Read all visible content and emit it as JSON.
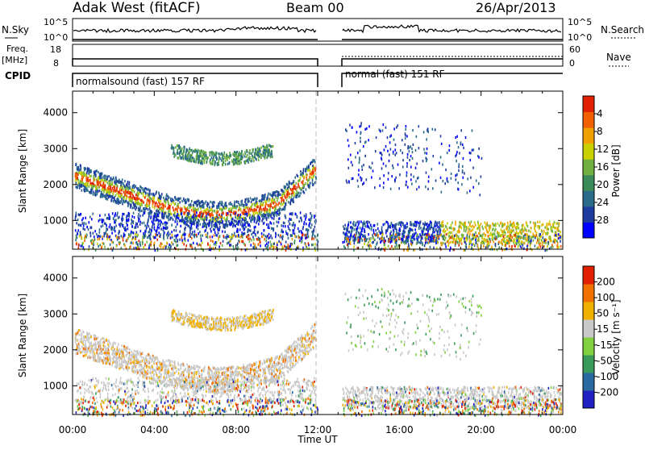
{
  "header": {
    "station": "Adak West (fitACF)",
    "beam": "Beam 00",
    "date": "26/Apr/2013"
  },
  "panels": {
    "nsky_label": "N.Sky",
    "nsearch_label": "N.Search",
    "freq_label_1": "Freq.",
    "freq_label_2": "[MHz]",
    "nave_label": "Nave",
    "cpid_label": "CPID",
    "nsky_ticks": [
      "10^5",
      "10^0"
    ],
    "nsearch_ticks": [
      "10^5",
      "10^0"
    ],
    "freq_ticks": [
      "18",
      "8"
    ],
    "nave_ticks": [
      "60",
      "0"
    ],
    "cpid_1": "normalsound (fast) 157 RF",
    "cpid_2": "normal (fast) 151 RF"
  },
  "chart_data": [
    {
      "type": "heatmap",
      "title": "",
      "xlabel": "Time UT",
      "ylabel": "Slant Range [km]",
      "xticks": [
        "00:00",
        "04:00",
        "08:00",
        "12:00",
        "16:00",
        "20:00",
        "00:00"
      ],
      "yticks": [
        "1000",
        "2000",
        "3000",
        "4000"
      ],
      "xlim": [
        0,
        24
      ],
      "ylim": [
        200,
        4600
      ],
      "colorbar": {
        "label": "Power [dB]",
        "ticks": [
          "4",
          "8",
          "12",
          "16",
          "20",
          "24",
          "28"
        ],
        "colors": [
          "#0000ff",
          "#1e3ca0",
          "#2a6a8a",
          "#3a8a5a",
          "#70b040",
          "#c8d000",
          "#f0a000",
          "#f06000",
          "#e02000"
        ]
      },
      "data_gap": [
        12.0,
        13.2
      ]
    },
    {
      "type": "heatmap",
      "title": "",
      "xlabel": "Time UT",
      "ylabel": "Slant Range [km]",
      "xticks": [
        "00:00",
        "04:00",
        "08:00",
        "12:00",
        "16:00",
        "20:00",
        "00:00"
      ],
      "yticks": [
        "1000",
        "2000",
        "3000",
        "4000"
      ],
      "xlim": [
        0,
        24
      ],
      "ylim": [
        200,
        4600
      ],
      "colorbar": {
        "label": "Velocity [m s⁻¹]",
        "ticks": [
          "200",
          "100",
          "50",
          "15",
          "-15",
          "-50",
          "-100",
          "-200"
        ],
        "colors": [
          "#2020c0",
          "#2a6aa0",
          "#3a9a5a",
          "#80d040",
          "#c8c8c8",
          "#f0b000",
          "#f07000",
          "#e02000"
        ]
      },
      "data_gap": [
        12.0,
        13.2
      ]
    }
  ]
}
